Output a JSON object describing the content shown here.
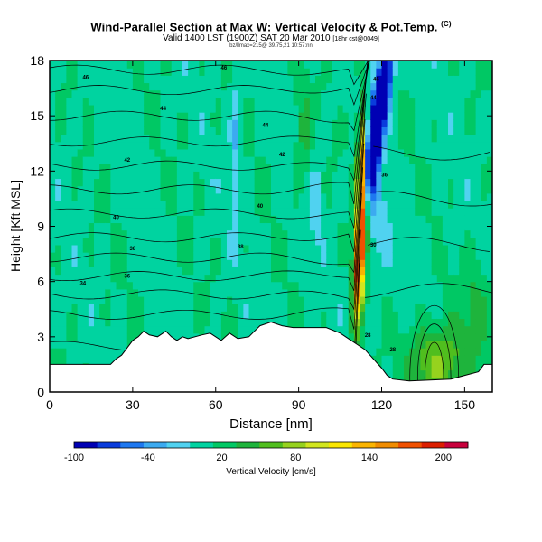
{
  "title": "Wind-Parallel Section at Max W: Vertical Velocity & Pot.Temp.",
  "title_tag": "(C)",
  "subtitle_main": "Valid 1400 LST (1900Z) SAT 20 Mar 2010",
  "subtitle_small": "[18hr cst@0049]",
  "subsubtitle": "bz/llmax=215@ 39.75,21 10:57:nn",
  "chart_data": {
    "type": "heatmap",
    "xlabel": "Distance [nm]",
    "ylabel": "Height [Kft MSL]",
    "xlim": [
      0,
      160
    ],
    "ylim": [
      0,
      18
    ],
    "x_ticks": [
      0,
      30,
      60,
      90,
      120,
      150
    ],
    "y_ticks": [
      0,
      3,
      6,
      9,
      12,
      15,
      18
    ],
    "colorbar": {
      "title": "Vertical Velocity [cm/s]",
      "labels": [
        -100,
        -40,
        20,
        80,
        140,
        200
      ],
      "range": [
        -100,
        220
      ],
      "colors": [
        "#0000b4",
        "#0a3cdc",
        "#1e78f0",
        "#3caaf0",
        "#50d2f0",
        "#00d3a0",
        "#00c864",
        "#1eb43c",
        "#50be1e",
        "#96d21e",
        "#d2e61e",
        "#fae600",
        "#fab400",
        "#f08c00",
        "#f05000",
        "#dc1e00",
        "#c8003c"
      ]
    },
    "terrain": [
      [
        0,
        1.5
      ],
      [
        22,
        1.5
      ],
      [
        24,
        1.8
      ],
      [
        26,
        2.0
      ],
      [
        28,
        2.4
      ],
      [
        30,
        2.8
      ],
      [
        32,
        3.0
      ],
      [
        34,
        3.3
      ],
      [
        36,
        3.1
      ],
      [
        39,
        3.0
      ],
      [
        42,
        3.3
      ],
      [
        44,
        3.0
      ],
      [
        46,
        2.8
      ],
      [
        48,
        3.0
      ],
      [
        50,
        2.9
      ],
      [
        55,
        3.1
      ],
      [
        58,
        3.2
      ],
      [
        62,
        2.8
      ],
      [
        65,
        3.2
      ],
      [
        68,
        2.9
      ],
      [
        72,
        3.0
      ],
      [
        74,
        3.3
      ],
      [
        76,
        3.6
      ],
      [
        80,
        3.8
      ],
      [
        84,
        3.6
      ],
      [
        88,
        3.5
      ],
      [
        95,
        3.5
      ],
      [
        100,
        3.5
      ],
      [
        105,
        3.2
      ],
      [
        108,
        2.9
      ],
      [
        111,
        2.6
      ],
      [
        114,
        2.3
      ],
      [
        117,
        1.8
      ],
      [
        120,
        1.3
      ],
      [
        122,
        0.9
      ],
      [
        124,
        0.7
      ],
      [
        130,
        0.6
      ],
      [
        145,
        0.7
      ],
      [
        150,
        0.9
      ],
      [
        155,
        1.1
      ],
      [
        157,
        1.5
      ],
      [
        160,
        1.5
      ]
    ],
    "contour_labels": [
      {
        "x": 13,
        "y": 17.1,
        "text": "46"
      },
      {
        "x": 63,
        "y": 17.6,
        "text": "46"
      },
      {
        "x": 41,
        "y": 15.4,
        "text": "44"
      },
      {
        "x": 78,
        "y": 14.5,
        "text": "44"
      },
      {
        "x": 28,
        "y": 12.6,
        "text": "42"
      },
      {
        "x": 84,
        "y": 12.9,
        "text": "42"
      },
      {
        "x": 24,
        "y": 9.5,
        "text": "40"
      },
      {
        "x": 76,
        "y": 10.1,
        "text": "40"
      },
      {
        "x": 30,
        "y": 7.8,
        "text": "38"
      },
      {
        "x": 69,
        "y": 7.9,
        "text": "38"
      },
      {
        "x": 28,
        "y": 6.3,
        "text": "36"
      },
      {
        "x": 12,
        "y": 5.9,
        "text": "34"
      },
      {
        "x": 117,
        "y": 8.0,
        "text": "30"
      },
      {
        "x": 115,
        "y": 3.1,
        "text": "28"
      },
      {
        "x": 124,
        "y": 2.3,
        "text": "28"
      },
      {
        "x": 121,
        "y": 11.8,
        "text": "36"
      },
      {
        "x": 117,
        "y": 16.0,
        "text": "44"
      },
      {
        "x": 118,
        "y": 17.0,
        "text": "46"
      }
    ]
  }
}
